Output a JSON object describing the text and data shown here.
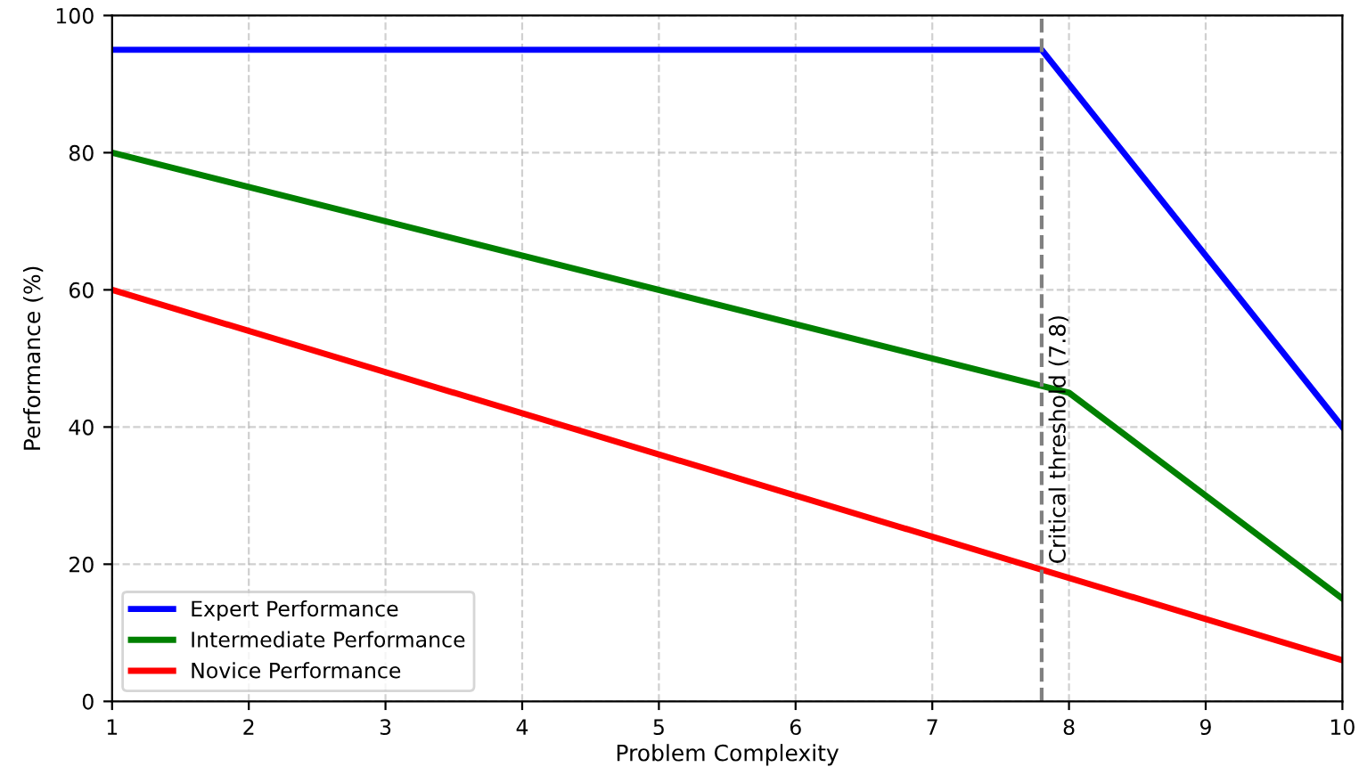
{
  "chart_data": {
    "type": "line",
    "xlabel": "Problem Complexity",
    "ylabel": "Performance (%)",
    "xlim": [
      1,
      10
    ],
    "ylim": [
      0,
      100
    ],
    "xticks": [
      1,
      2,
      3,
      4,
      5,
      6,
      7,
      8,
      9,
      10
    ],
    "yticks": [
      0,
      20,
      40,
      60,
      80,
      100
    ],
    "grid": true,
    "legend": "bottom left",
    "line_style": "solid",
    "marker": "none",
    "series": [
      {
        "name": "Expert Performance",
        "color": "#0000ff",
        "x": [
          1,
          7.8,
          10
        ],
        "values": [
          95,
          95,
          40
        ]
      },
      {
        "name": "Intermediate Performance",
        "color": "#008000",
        "x": [
          1,
          8,
          10
        ],
        "values": [
          80,
          45,
          15
        ]
      },
      {
        "name": "Novice Performance",
        "color": "#ff0000",
        "x": [
          1,
          10
        ],
        "values": [
          60,
          6
        ]
      }
    ],
    "ref_lines": [
      {
        "axis": "x",
        "value": 7.8,
        "label": "Critical threshold (7.8)",
        "color": "#808080",
        "line_style": "dashed"
      }
    ]
  }
}
